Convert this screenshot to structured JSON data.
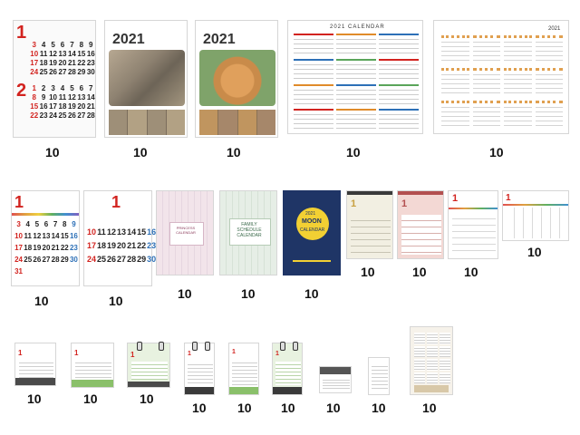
{
  "items": [
    {
      "id": "c1",
      "qty": "10",
      "month_a": "1",
      "month_b": "2"
    },
    {
      "id": "c2",
      "qty": "10",
      "year": "2021"
    },
    {
      "id": "c3",
      "qty": "10",
      "year": "2021"
    },
    {
      "id": "c4",
      "qty": "10",
      "title": "2021 CALENDAR"
    },
    {
      "id": "c5",
      "qty": "10",
      "year": "2021"
    },
    {
      "id": "c6",
      "qty": "10",
      "month": "1"
    },
    {
      "id": "c7",
      "qty": "10",
      "month": "1"
    },
    {
      "id": "c8",
      "qty": "10",
      "title": "PRINCESS CALENDAR"
    },
    {
      "id": "c9",
      "qty": "10",
      "title": "FAMILY SCHEDULE CALENDAR"
    },
    {
      "id": "c10",
      "qty": "10",
      "year": "2021",
      "title_a": "MOON",
      "title_b": "CALENDAR"
    },
    {
      "id": "c11",
      "qty": "10",
      "month": "1"
    },
    {
      "id": "c12",
      "qty": "10",
      "month": "1"
    },
    {
      "id": "c13",
      "qty": "10",
      "month": "1"
    },
    {
      "id": "c14",
      "qty": "10",
      "month": "1"
    },
    {
      "id": "d1",
      "qty": "10",
      "month": "1"
    },
    {
      "id": "d2",
      "qty": "10",
      "month": "1"
    },
    {
      "id": "d3",
      "qty": "10",
      "month": "1"
    },
    {
      "id": "d4",
      "qty": "10",
      "month": "1"
    },
    {
      "id": "d5",
      "qty": "10",
      "month": "1"
    },
    {
      "id": "d6",
      "qty": "10",
      "month": "1"
    },
    {
      "id": "d7",
      "qty": "10"
    },
    {
      "id": "d8",
      "qty": "10"
    },
    {
      "id": "d9",
      "qty": "10"
    }
  ],
  "c1_days_a": [
    "3",
    "4",
    "5",
    "6",
    "7",
    "8",
    "9",
    "10",
    "11",
    "12",
    "13",
    "14",
    "15",
    "16",
    "17",
    "18",
    "19",
    "20",
    "21",
    "22",
    "23",
    "24",
    "25",
    "26",
    "27",
    "28",
    "29",
    "30"
  ],
  "c1_days_b": [
    "1",
    "2",
    "3",
    "4",
    "5",
    "6",
    "7",
    "8",
    "9",
    "10",
    "11",
    "12",
    "13",
    "14",
    "15",
    "16",
    "17",
    "18",
    "19",
    "20",
    "21",
    "22",
    "23",
    "24",
    "25",
    "26",
    "27",
    "28"
  ],
  "c7_days": [
    "10",
    "11",
    "12",
    "13",
    "14",
    "15",
    "16",
    "17",
    "18",
    "19",
    "20",
    "21",
    "22",
    "23",
    "24",
    "25",
    "26",
    "27",
    "28",
    "29",
    "30"
  ],
  "c6_days": [
    "3",
    "4",
    "5",
    "6",
    "7",
    "8",
    "9",
    "10",
    "11",
    "12",
    "13",
    "14",
    "15",
    "16",
    "17",
    "18",
    "19",
    "20",
    "21",
    "22",
    "23",
    "24",
    "25",
    "26",
    "27",
    "28",
    "29",
    "30",
    "31"
  ],
  "colors": {
    "red": "#d2231f",
    "accent_green": "#8ac06a",
    "navy": "#1f3566",
    "moon_yellow": "#f2d033"
  }
}
